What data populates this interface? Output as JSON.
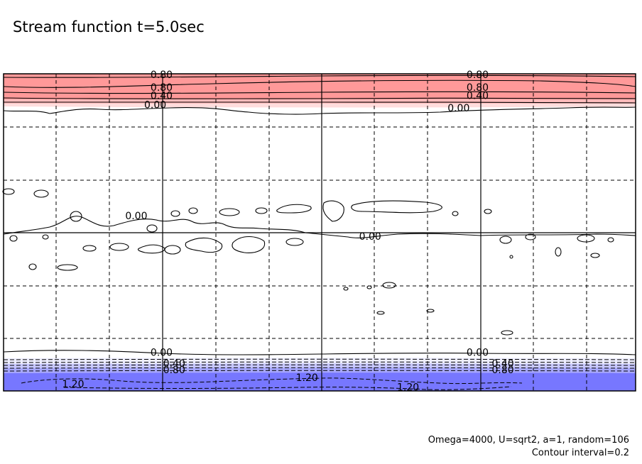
{
  "title": "Stream function t=5.0sec",
  "notes": {
    "line1": "Omega=4000, U=sqrt2, a=1, random=106",
    "line2": "Contour interval=0.2"
  },
  "chart_data": {
    "type": "contour",
    "title": "Stream function t=5.0sec",
    "xlabel": "",
    "ylabel": "",
    "xlim": [
      0,
      1
    ],
    "ylim": [
      -1,
      1
    ],
    "grid": true,
    "contour_interval": 0.2,
    "colors": {
      "positive_fill": "#ff9999",
      "positive_fill_light": "#ffbbbb",
      "positive_fill_lighter": "#ffdddd",
      "negative_fill": "#7777ff",
      "negative_fill_light": "#a8a8ff",
      "negative_fill_lighter": "#d0d0ff",
      "line": "#000000"
    },
    "contour_labels": [
      {
        "text": "0.80",
        "x": 0.25,
        "y": 0.99
      },
      {
        "text": "0.80",
        "x": 0.75,
        "y": 0.99
      },
      {
        "text": "0.80",
        "x": 0.25,
        "y": 0.91
      },
      {
        "text": "0.80",
        "x": 0.75,
        "y": 0.91
      },
      {
        "text": "0.40",
        "x": 0.25,
        "y": 0.86
      },
      {
        "text": "0.40",
        "x": 0.75,
        "y": 0.86
      },
      {
        "text": "0.00",
        "x": 0.24,
        "y": 0.8
      },
      {
        "text": "0.00",
        "x": 0.72,
        "y": 0.78
      },
      {
        "text": "0.00",
        "x": 0.21,
        "y": 0.1
      },
      {
        "text": "0.00",
        "x": 0.58,
        "y": -0.03
      },
      {
        "text": "0.00",
        "x": 0.25,
        "y": -0.76
      },
      {
        "text": "0.00",
        "x": 0.75,
        "y": -0.76
      },
      {
        "text": "0.40",
        "x": 0.27,
        "y": -0.83
      },
      {
        "text": "0.40",
        "x": 0.79,
        "y": -0.83
      },
      {
        "text": "0.80",
        "x": 0.27,
        "y": -0.87
      },
      {
        "text": "0.80",
        "x": 0.79,
        "y": -0.87
      },
      {
        "text": "1.20",
        "x": 0.11,
        "y": -0.96
      },
      {
        "text": "1.20",
        "x": 0.48,
        "y": -0.92
      },
      {
        "text": "1.20",
        "x": 0.64,
        "y": -0.98
      }
    ]
  }
}
